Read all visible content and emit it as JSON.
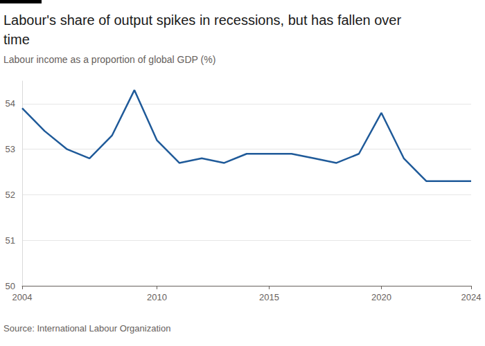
{
  "chart_data": {
    "type": "line",
    "title": "Labour's share of output spikes in recessions, but has fallen over time",
    "subtitle": "Labour income as a proportion of global GDP (%)",
    "source": "Source: International Labour Organization",
    "x": [
      2004,
      2005,
      2006,
      2007,
      2008,
      2009,
      2010,
      2011,
      2012,
      2013,
      2014,
      2015,
      2016,
      2017,
      2018,
      2019,
      2020,
      2021,
      2022,
      2023,
      2024
    ],
    "values": [
      53.9,
      53.4,
      53.0,
      52.8,
      53.3,
      54.3,
      53.2,
      52.7,
      52.8,
      52.7,
      52.9,
      52.9,
      52.9,
      52.8,
      52.7,
      52.9,
      53.8,
      52.8,
      52.3,
      52.3,
      52.3
    ],
    "color": "#1f5a99",
    "xlim": [
      2004,
      2024
    ],
    "xticks": [
      2004,
      2010,
      2015,
      2020,
      2024
    ],
    "ylim": [
      50,
      54.5
    ],
    "yticks": [
      50,
      51,
      52,
      53,
      54
    ],
    "grid": true
  }
}
